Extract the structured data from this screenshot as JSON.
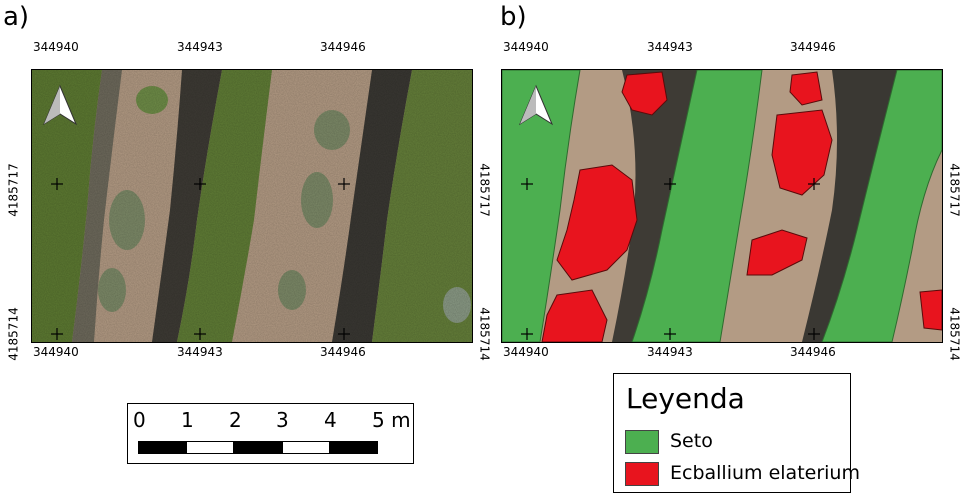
{
  "panels": [
    {
      "id": "a",
      "label": "a)",
      "x_ticks": [
        "344940",
        "344943",
        "344946"
      ],
      "y_ticks": [
        "4185717",
        "4185714"
      ],
      "north_arrow": "north-arrow-icon",
      "layers": [
        "aerial-orthophoto"
      ]
    },
    {
      "id": "b",
      "label": "b)",
      "x_ticks": [
        "344940",
        "344943",
        "344946"
      ],
      "y_ticks": [
        "4185717",
        "4185714"
      ],
      "north_arrow": "north-arrow-icon",
      "layers": [
        "aerial-orthophoto",
        "seto-classification",
        "ecballium-classification"
      ]
    }
  ],
  "legend": {
    "title": "Leyenda",
    "items": [
      {
        "label": "Seto",
        "color": "#4caf50"
      },
      {
        "label": "Ecballium elaterium",
        "color": "#e8141e"
      }
    ]
  },
  "scale_bar": {
    "labels": [
      "0",
      "1",
      "2",
      "3",
      "4",
      "5 m"
    ],
    "segment_colors": [
      "#000000",
      "#ffffff",
      "#000000",
      "#ffffff",
      "#000000"
    ]
  },
  "colors": {
    "soil": "#b39b84",
    "hedge": "#5a7430",
    "shadow": "#3c3a36",
    "seto": "#4caf50",
    "ecballium": "#e8141e"
  }
}
